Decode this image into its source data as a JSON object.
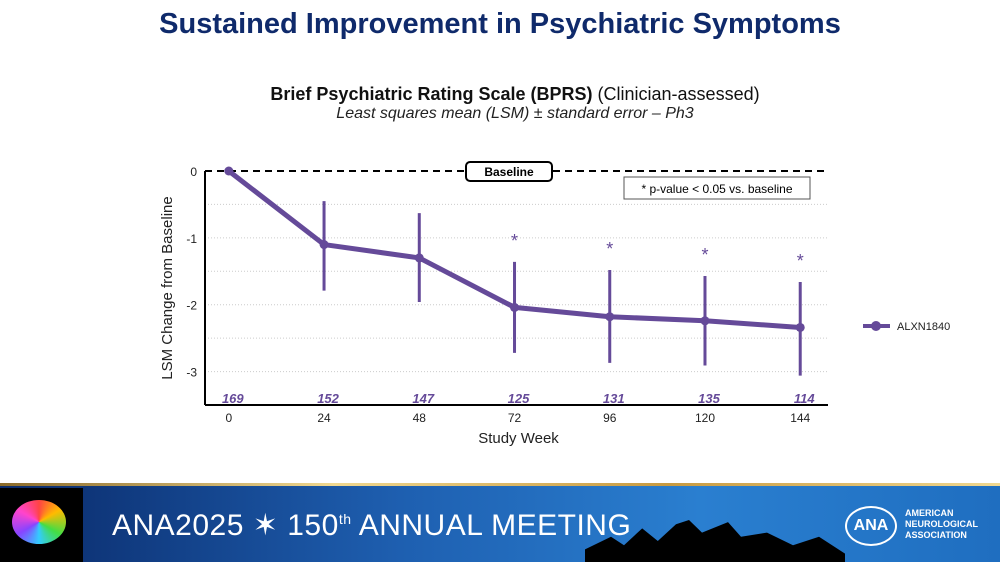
{
  "slide": {
    "title": "Sustained Improvement in Psychiatric Symptoms"
  },
  "chart_data": {
    "type": "line",
    "title": "Brief Psychiatric Rating Scale (BPRS)",
    "title_suffix": "(Clinician-assessed)",
    "subtitle": "Least squares mean (LSM) ± standard error – Ph3",
    "xlabel": "Study Week",
    "ylabel": "LSM Change from Baseline",
    "x": [
      0,
      24,
      48,
      72,
      96,
      120,
      144
    ],
    "xlim": [
      -6,
      151
    ],
    "ylim": [
      -3.5,
      0
    ],
    "yticks": [
      0,
      -1,
      -2,
      -3
    ],
    "grid": "horizontal dotted at 0.5 intervals",
    "baseline_label": "Baseline",
    "footnote": "* p-value < 0.05 vs. baseline",
    "legend_position": "right",
    "color": "#654a99",
    "series": [
      {
        "name": "ALXN1840",
        "values": [
          0,
          -1.1,
          -1.3,
          -2.04,
          -2.18,
          -2.24,
          -2.34
        ],
        "upper": [
          null,
          -0.45,
          -0.63,
          -1.36,
          -1.48,
          -1.57,
          -1.66
        ],
        "lower": [
          null,
          -1.79,
          -1.96,
          -2.72,
          -2.87,
          -2.91,
          -3.06
        ],
        "significant": [
          false,
          false,
          false,
          true,
          true,
          true,
          true
        ],
        "n": [
          "169",
          "152",
          "147",
          "125",
          "131",
          "135",
          "114"
        ]
      }
    ]
  },
  "banner": {
    "meeting": "ANA2025",
    "annual": "150",
    "annual_sup": "th",
    "annual_rest": "ANNUAL MEETING",
    "logo": "ANA",
    "org": "AMERICAN NEUROLOGICAL ASSOCIATION"
  }
}
